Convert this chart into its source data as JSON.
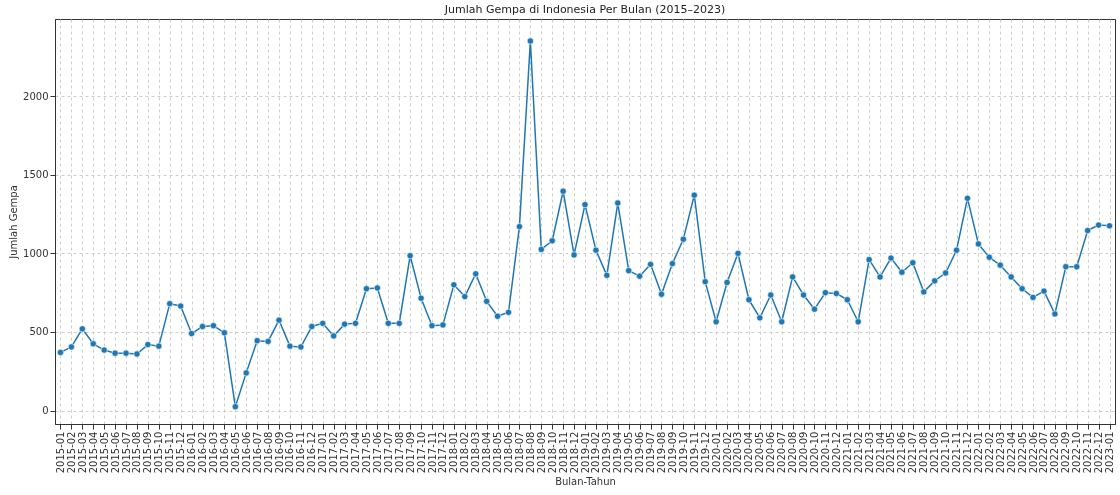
{
  "chart_data": {
    "type": "line",
    "title": "Jumlah Gempa di Indonesia Per Bulan (2015–2023)",
    "xlabel": "Bulan-Tahun",
    "ylabel": "Jumlah Gempa",
    "categories": [
      "2015-01",
      "2015-02",
      "2015-03",
      "2015-04",
      "2015-05",
      "2015-06",
      "2015-07",
      "2015-08",
      "2015-09",
      "2015-10",
      "2015-11",
      "2015-12",
      "2016-01",
      "2016-02",
      "2016-03",
      "2016-04",
      "2016-05",
      "2016-06",
      "2016-07",
      "2016-08",
      "2016-09",
      "2016-10",
      "2016-11",
      "2016-12",
      "2017-01",
      "2017-02",
      "2017-03",
      "2017-04",
      "2017-05",
      "2017-06",
      "2017-07",
      "2017-08",
      "2017-09",
      "2017-10",
      "2017-11",
      "2017-12",
      "2018-01",
      "2018-02",
      "2018-03",
      "2018-04",
      "2018-05",
      "2018-06",
      "2018-07",
      "2018-08",
      "2018-09",
      "2018-10",
      "2018-11",
      "2018-12",
      "2019-01",
      "2019-02",
      "2019-03",
      "2019-04",
      "2019-05",
      "2019-06",
      "2019-07",
      "2019-08",
      "2019-09",
      "2019-10",
      "2019-11",
      "2019-12",
      "2020-01",
      "2020-02",
      "2020-03",
      "2020-04",
      "2020-05",
      "2020-06",
      "2020-07",
      "2020-08",
      "2020-09",
      "2020-10",
      "2020-11",
      "2020-12",
      "2021-01",
      "2021-02",
      "2021-03",
      "2021-04",
      "2021-05",
      "2021-06",
      "2021-07",
      "2021-08",
      "2021-09",
      "2021-10",
      "2021-11",
      "2021-12",
      "2022-01",
      "2022-02",
      "2022-03",
      "2022-04",
      "2022-05",
      "2022-06",
      "2022-07",
      "2022-08",
      "2022-09",
      "2022-10",
      "2022-11",
      "2022-12",
      "2023-01"
    ],
    "series": [
      {
        "color": "#1f77b4",
        "values": [
          370,
          405,
          520,
          425,
          385,
          365,
          365,
          360,
          420,
          410,
          680,
          665,
          490,
          535,
          540,
          495,
          25,
          240,
          445,
          440,
          575,
          410,
          405,
          535,
          555,
          475,
          550,
          555,
          775,
          780,
          555,
          555,
          985,
          715,
          540,
          545,
          800,
          725,
          870,
          695,
          600,
          625,
          1170,
          2350,
          1025,
          1080,
          1395,
          990,
          1310,
          1020,
          860,
          1320,
          890,
          855,
          930,
          740,
          935,
          1090,
          1370,
          820,
          565,
          815,
          1000,
          705,
          590,
          735,
          565,
          850,
          735,
          645,
          750,
          745,
          705,
          565,
          960,
          850,
          970,
          880,
          940,
          755,
          825,
          875,
          1020,
          1350,
          1060,
          975,
          925,
          850,
          775,
          720,
          760,
          615,
          915,
          915,
          1145,
          1180,
          1175
        ]
      }
    ],
    "ylim": [
      -85,
      2490
    ],
    "yticks": [
      0,
      500,
      1000,
      1500,
      2000
    ],
    "grid": true,
    "marker": "circle",
    "line_style": "solid"
  }
}
